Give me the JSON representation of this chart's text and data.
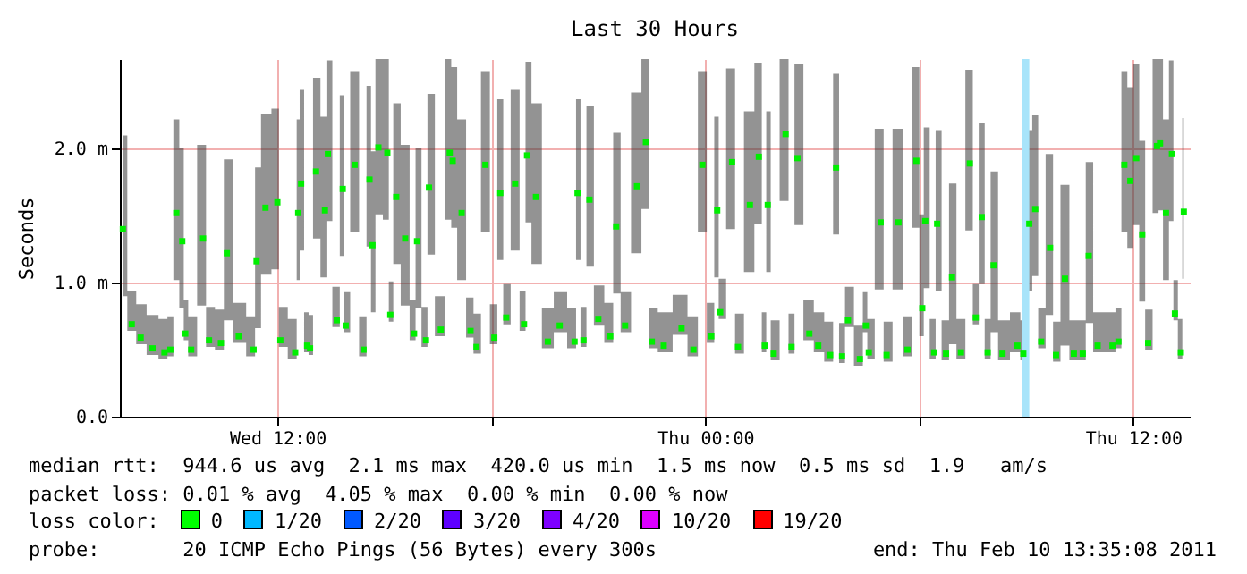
{
  "chart_data": {
    "type": "scatter",
    "title": "Last 30 Hours",
    "ylabel": "Seconds",
    "marker": "square",
    "grid": true,
    "xlim": [
      "2011-02-09T07:35",
      "2011-02-10T13:35"
    ],
    "xticks": [
      {
        "value": "2011-02-09T12:00",
        "label": "Wed 12:00"
      },
      {
        "value": "2011-02-09T18:00",
        "label": null
      },
      {
        "value": "2011-02-10T00:00",
        "label": "Thu 00:00"
      },
      {
        "value": "2011-02-10T06:00",
        "label": null
      },
      {
        "value": "2011-02-10T12:00",
        "label": "Thu 12:00"
      }
    ],
    "ylim": [
      0,
      2.67
    ],
    "yticks": [
      {
        "value": 0,
        "label": "0.0"
      },
      {
        "value": 1,
        "label": "1.0 m"
      },
      {
        "value": 2,
        "label": "2.0 m"
      }
    ],
    "bands": [
      {
        "axis": "x",
        "from": "2011-02-10T08:53",
        "to": "2011-02-10T09:05",
        "color": "#a8e4fa"
      }
    ],
    "annotations": [
      "median rtt:  944.6 us avg  2.1 ms max  420.0 us min  1.5 ms now  0.5 ms sd  1.9   am/s",
      "packet loss: 0.01 % avg  4.05 % max  0.00 % min  0.00 % now",
      "loss color:",
      "0",
      "1/20",
      "2/20",
      "3/20",
      "4/20",
      "10/20",
      "19/20",
      "probe:       20 ICMP Echo Pings (56 Bytes) every 300s",
      "end: Thu Feb 10 13:35:08 2011"
    ],
    "x": [
      "2011-02-09T07:40",
      "2011-02-09T07:55",
      "2011-02-09T08:10",
      "2011-02-09T08:30",
      "2011-02-09T08:50",
      "2011-02-09T09:00",
      "2011-02-09T09:10",
      "2011-02-09T09:20",
      "2011-02-09T09:25",
      "2011-02-09T09:35",
      "2011-02-09T09:55",
      "2011-02-09T10:05",
      "2011-02-09T10:25",
      "2011-02-09T10:35",
      "2011-02-09T10:55",
      "2011-02-09T11:20",
      "2011-02-09T11:25",
      "2011-02-09T11:40",
      "2011-02-09T12:00",
      "2011-02-09T12:05",
      "2011-02-09T12:30",
      "2011-02-09T12:35",
      "2011-02-09T12:40",
      "2011-02-09T12:50",
      "2011-02-09T12:55",
      "2011-02-09T13:05",
      "2011-02-09T13:20",
      "2011-02-09T13:25",
      "2011-02-09T13:40",
      "2011-02-09T13:50",
      "2011-02-09T13:55",
      "2011-02-09T14:10",
      "2011-02-09T14:25",
      "2011-02-09T14:35",
      "2011-02-09T14:40",
      "2011-02-09T14:50",
      "2011-02-09T15:05",
      "2011-02-09T15:10",
      "2011-02-09T15:20",
      "2011-02-09T15:35",
      "2011-02-09T15:50",
      "2011-02-09T15:55",
      "2011-02-09T16:10",
      "2011-02-09T16:15",
      "2011-02-09T16:35",
      "2011-02-09T16:50",
      "2011-02-09T16:55",
      "2011-02-09T17:10",
      "2011-02-09T17:25",
      "2011-02-09T17:35",
      "2011-02-09T17:50",
      "2011-02-09T18:05",
      "2011-02-09T18:15",
      "2011-02-09T18:25",
      "2011-02-09T18:40",
      "2011-02-09T18:55",
      "2011-02-09T19:00",
      "2011-02-09T19:15",
      "2011-02-09T19:35",
      "2011-02-09T19:55",
      "2011-02-09T20:20",
      "2011-02-09T20:25",
      "2011-02-09T20:35",
      "2011-02-09T20:45",
      "2011-02-09T21:00",
      "2011-02-09T21:20",
      "2011-02-09T21:30",
      "2011-02-09T21:45",
      "2011-02-09T22:05",
      "2011-02-09T22:20",
      "2011-02-09T22:30",
      "2011-02-09T22:50",
      "2011-02-09T23:20",
      "2011-02-09T23:40",
      "2011-02-09T23:55",
      "2011-02-10T00:10",
      "2011-02-10T00:20",
      "2011-02-10T00:25",
      "2011-02-10T00:45",
      "2011-02-10T00:55",
      "2011-02-10T01:15",
      "2011-02-10T01:30",
      "2011-02-10T01:40",
      "2011-02-10T01:45",
      "2011-02-10T01:55",
      "2011-02-10T02:15",
      "2011-02-10T02:25",
      "2011-02-10T02:35",
      "2011-02-10T02:55",
      "2011-02-10T03:10",
      "2011-02-10T03:30",
      "2011-02-10T03:40",
      "2011-02-10T03:50",
      "2011-02-10T04:00",
      "2011-02-10T04:20",
      "2011-02-10T04:30",
      "2011-02-10T04:35",
      "2011-02-10T04:55",
      "2011-02-10T05:05",
      "2011-02-10T05:25",
      "2011-02-10T05:40",
      "2011-02-10T05:55",
      "2011-02-10T06:05",
      "2011-02-10T06:10",
      "2011-02-10T06:25",
      "2011-02-10T06:30",
      "2011-02-10T06:45",
      "2011-02-10T06:55",
      "2011-02-10T07:10",
      "2011-02-10T07:25",
      "2011-02-10T07:35",
      "2011-02-10T07:45",
      "2011-02-10T07:55",
      "2011-02-10T08:05",
      "2011-02-10T08:20",
      "2011-02-10T08:45",
      "2011-02-10T08:55",
      "2011-02-10T09:05",
      "2011-02-10T09:15",
      "2011-02-10T09:25",
      "2011-02-10T09:40",
      "2011-02-10T09:50",
      "2011-02-10T10:05",
      "2011-02-10T10:20",
      "2011-02-10T10:35",
      "2011-02-10T10:45",
      "2011-02-10T11:00",
      "2011-02-10T11:25",
      "2011-02-10T11:35",
      "2011-02-10T11:45",
      "2011-02-10T11:55",
      "2011-02-10T12:05",
      "2011-02-10T12:15",
      "2011-02-10T12:25",
      "2011-02-10T12:40",
      "2011-02-10T12:45",
      "2011-02-10T12:55",
      "2011-02-10T13:05",
      "2011-02-10T13:10",
      "2011-02-10T13:20",
      "2011-02-10T13:25"
    ],
    "series": [
      {
        "color": "#00ee00",
        "values": [
          1.4,
          0.69,
          0.59,
          0.51,
          0.48,
          0.5,
          1.52,
          1.31,
          0.62,
          0.5,
          1.33,
          0.57,
          0.55,
          1.22,
          0.6,
          0.5,
          1.16,
          1.56,
          1.6,
          0.57,
          0.48,
          1.52,
          1.74,
          0.53,
          0.51,
          1.83,
          1.54,
          1.96,
          0.72,
          1.7,
          0.68,
          1.88,
          0.5,
          1.77,
          1.28,
          2.01,
          1.97,
          0.76,
          1.64,
          1.33,
          0.62,
          1.31,
          0.57,
          1.71,
          0.65,
          1.97,
          1.91,
          1.52,
          0.64,
          0.52,
          1.88,
          0.59,
          1.67,
          0.74,
          1.74,
          0.69,
          1.95,
          1.64,
          0.56,
          0.68,
          0.56,
          1.67,
          0.57,
          1.62,
          0.73,
          0.6,
          1.42,
          0.68,
          1.72,
          2.05,
          0.56,
          0.53,
          0.66,
          0.5,
          1.88,
          0.6,
          1.54,
          0.78,
          1.9,
          0.52,
          1.58,
          1.94,
          0.53,
          1.58,
          0.47,
          2.11,
          0.52,
          1.93,
          0.62,
          0.53,
          0.46,
          1.86,
          0.45,
          0.72,
          0.43,
          0.68,
          0.48,
          1.45,
          0.46,
          1.45,
          0.5,
          1.91,
          0.81,
          1.46,
          0.48,
          1.44,
          0.47,
          1.04,
          0.48,
          1.89,
          0.74,
          1.49,
          0.48,
          1.13,
          0.47,
          0.53,
          0.47,
          1.44,
          1.55,
          0.56,
          1.26,
          0.46,
          1.03,
          0.47,
          0.47,
          1.2,
          0.53,
          0.53,
          0.56,
          1.88,
          1.76,
          1.93,
          1.36,
          0.55,
          2.02,
          2.04,
          1.52,
          1.96,
          0.77,
          0.48,
          1.53
        ],
        "lower": [
          0.9,
          0.64,
          0.54,
          0.46,
          0.43,
          0.45,
          1.02,
          0.81,
          0.57,
          0.45,
          0.83,
          0.52,
          0.5,
          0.72,
          0.55,
          0.45,
          0.66,
          1.06,
          1.1,
          0.52,
          0.43,
          1.02,
          1.24,
          0.48,
          0.46,
          1.33,
          1.04,
          1.46,
          0.67,
          1.2,
          0.63,
          1.38,
          0.45,
          1.27,
          0.78,
          1.51,
          1.47,
          0.71,
          1.14,
          0.83,
          0.57,
          0.81,
          0.52,
          1.21,
          0.6,
          1.47,
          1.41,
          1.02,
          0.59,
          0.47,
          1.38,
          0.54,
          1.17,
          0.69,
          1.24,
          0.64,
          1.45,
          1.14,
          0.51,
          0.63,
          0.51,
          1.17,
          0.52,
          1.12,
          0.68,
          0.55,
          0.92,
          0.63,
          1.22,
          1.55,
          0.51,
          0.48,
          0.61,
          0.45,
          1.38,
          0.55,
          1.04,
          0.73,
          1.4,
          0.47,
          1.08,
          1.44,
          0.48,
          1.08,
          0.42,
          1.61,
          0.47,
          1.43,
          0.57,
          0.48,
          0.41,
          1.36,
          0.4,
          0.67,
          0.38,
          0.63,
          0.43,
          0.95,
          0.41,
          0.95,
          0.45,
          1.41,
          0.6,
          0.96,
          0.43,
          0.94,
          0.42,
          0.54,
          0.43,
          1.39,
          0.69,
          0.99,
          0.43,
          0.63,
          0.42,
          0.48,
          0.42,
          0.94,
          1.05,
          0.51,
          0.76,
          0.41,
          0.53,
          0.42,
          0.42,
          0.7,
          0.48,
          0.48,
          0.51,
          1.38,
          1.26,
          1.43,
          0.86,
          0.5,
          1.52,
          1.54,
          1.02,
          1.46,
          0.72,
          0.43,
          1.03
        ],
        "upper": [
          2.1,
          0.94,
          0.84,
          0.76,
          0.73,
          0.75,
          2.22,
          2.01,
          0.87,
          0.75,
          2.03,
          0.82,
          0.8,
          1.92,
          0.85,
          0.75,
          1.86,
          2.26,
          2.3,
          0.82,
          0.73,
          2.22,
          2.44,
          0.78,
          0.76,
          2.53,
          2.24,
          2.66,
          0.97,
          2.4,
          0.93,
          2.58,
          0.75,
          2.47,
          1.98,
          2.67,
          2.67,
          1.01,
          2.34,
          2.03,
          0.87,
          2.01,
          0.82,
          2.41,
          0.9,
          2.67,
          2.61,
          2.22,
          0.89,
          0.77,
          2.58,
          0.84,
          2.37,
          0.99,
          2.44,
          0.94,
          2.65,
          2.34,
          0.81,
          0.93,
          0.81,
          2.37,
          0.82,
          2.32,
          0.98,
          0.85,
          2.12,
          0.93,
          2.42,
          2.67,
          0.81,
          0.78,
          0.91,
          0.75,
          2.58,
          0.85,
          2.24,
          1.03,
          2.6,
          0.77,
          2.28,
          2.64,
          0.78,
          2.28,
          0.72,
          2.67,
          0.77,
          2.63,
          0.87,
          0.78,
          0.71,
          2.56,
          0.7,
          0.97,
          0.68,
          0.93,
          0.73,
          2.15,
          0.71,
          2.15,
          0.75,
          2.61,
          1.51,
          2.16,
          0.73,
          2.14,
          0.72,
          1.74,
          0.73,
          2.59,
          0.99,
          2.19,
          0.73,
          1.83,
          0.72,
          0.78,
          0.72,
          2.14,
          2.25,
          0.81,
          1.96,
          0.71,
          1.73,
          0.72,
          0.72,
          1.9,
          0.78,
          0.78,
          0.81,
          2.58,
          2.46,
          2.63,
          2.06,
          0.8,
          2.67,
          2.67,
          2.22,
          2.66,
          1.02,
          0.73,
          2.23
        ]
      }
    ]
  }
}
